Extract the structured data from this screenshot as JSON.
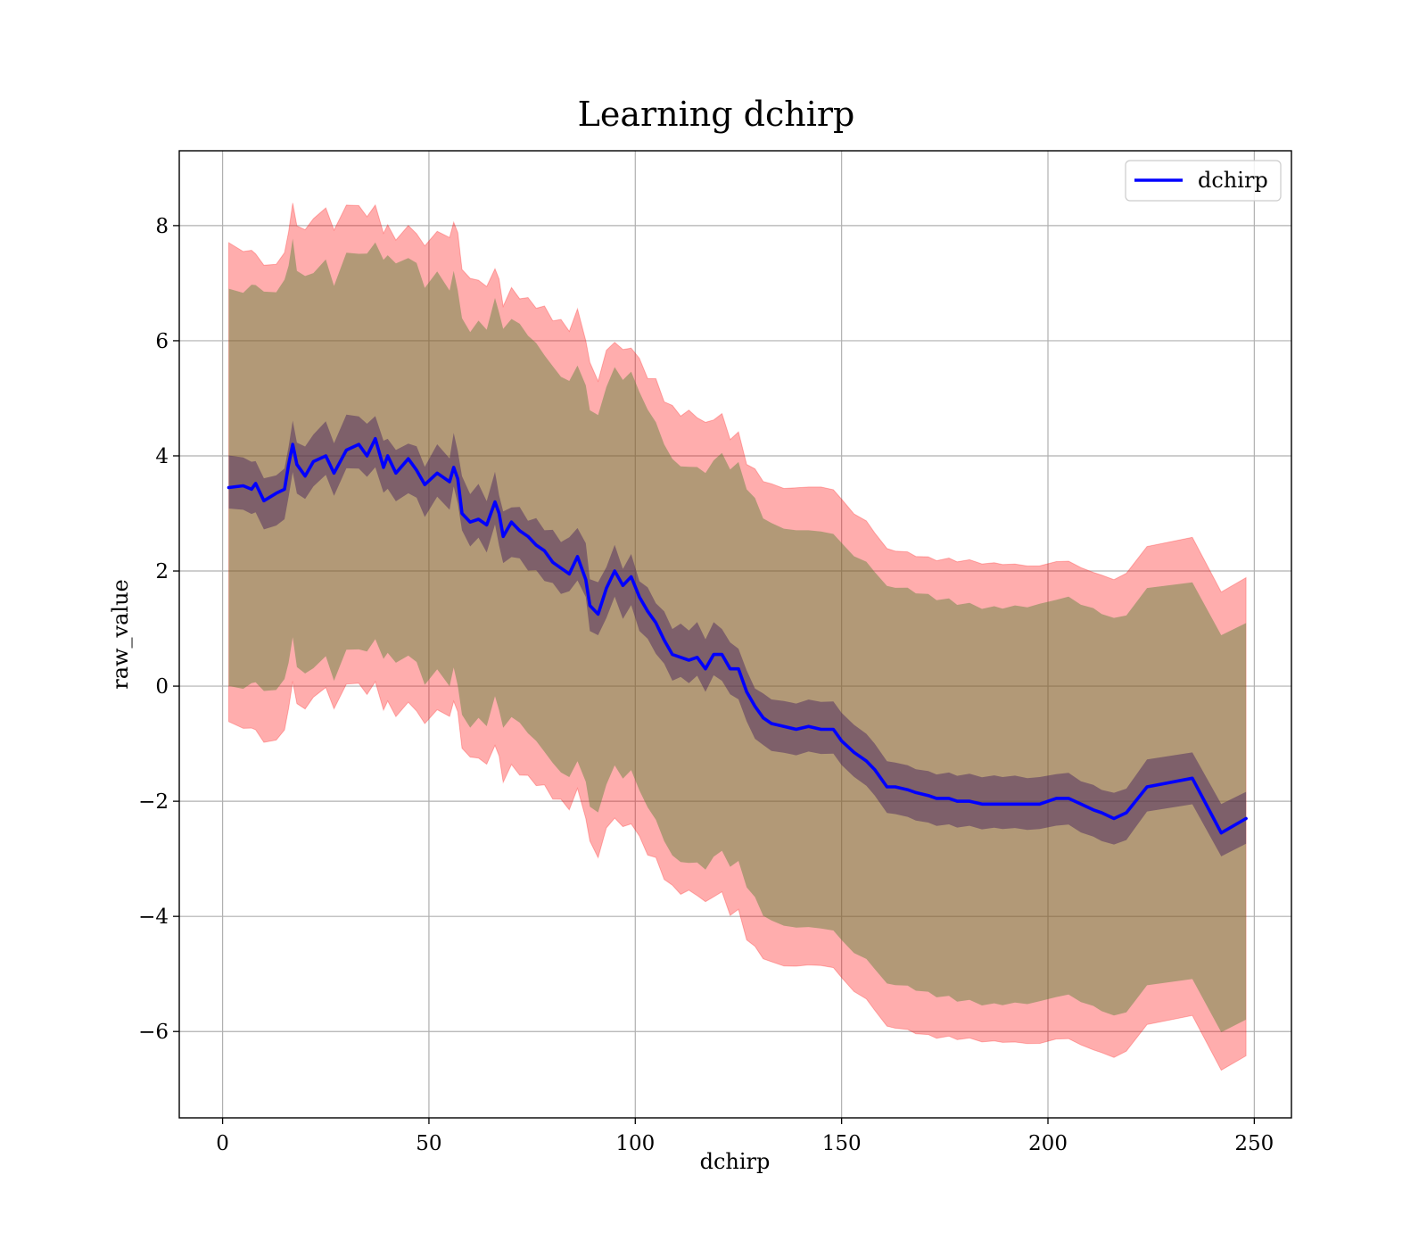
{
  "chart_data": {
    "type": "line",
    "title": "Learning dchirp",
    "xlabel": "dchirp",
    "ylabel": "raw_value",
    "xlim": [
      -10.5,
      259
    ],
    "ylim": [
      -7.5,
      9.3
    ],
    "xticks": [
      0,
      50,
      100,
      150,
      200,
      250
    ],
    "yticks": [
      -6,
      -4,
      -2,
      0,
      2,
      4,
      6,
      8
    ],
    "xtick_labels": [
      "0",
      "50",
      "100",
      "150",
      "200",
      "250"
    ],
    "ytick_labels": [
      "−6",
      "−4",
      "−2",
      "0",
      "2",
      "4",
      "6",
      "8"
    ],
    "grid": true,
    "legend_position": "top-right",
    "colors": {
      "line": "#0000ff",
      "outer_band": "#ff0000",
      "outer_band_opacity": 0.32,
      "middle_band": "#548135",
      "middle_band_opacity": 0.45,
      "inner_band": "#3d1a5c",
      "inner_band_opacity": 0.45
    },
    "series": [
      {
        "name": "dchirp",
        "x": [
          1.5,
          5,
          7,
          8,
          10,
          13,
          15,
          16,
          17,
          18,
          20,
          22,
          25,
          27,
          30,
          33,
          35,
          37,
          39,
          40,
          42,
          45,
          47,
          49,
          52,
          55,
          56,
          57,
          58,
          60,
          62,
          64,
          66,
          67,
          68,
          70,
          72,
          74,
          76,
          78,
          80,
          82,
          84,
          86,
          88,
          89,
          91,
          93,
          95,
          97,
          99,
          101,
          103,
          105,
          107,
          109,
          111,
          113,
          115,
          117,
          119,
          121,
          123,
          125,
          127,
          129,
          131,
          133,
          136,
          139,
          142,
          145,
          148,
          150,
          153,
          156,
          158,
          161,
          163,
          166,
          168,
          171,
          173,
          176,
          178,
          181,
          184,
          187,
          189,
          192,
          195,
          198,
          202,
          205,
          208,
          211,
          213,
          216,
          219,
          224,
          235,
          242,
          248
        ],
        "y": [
          3.45,
          3.48,
          3.42,
          3.52,
          3.22,
          3.35,
          3.42,
          3.85,
          4.2,
          3.85,
          3.65,
          3.9,
          4.0,
          3.7,
          4.1,
          4.2,
          4.0,
          4.3,
          3.8,
          4.0,
          3.7,
          3.95,
          3.75,
          3.5,
          3.7,
          3.55,
          3.8,
          3.6,
          3.0,
          2.85,
          2.9,
          2.8,
          3.2,
          3.0,
          2.6,
          2.85,
          2.7,
          2.6,
          2.45,
          2.35,
          2.15,
          2.05,
          1.95,
          2.25,
          1.85,
          1.4,
          1.25,
          1.7,
          2.0,
          1.75,
          1.9,
          1.55,
          1.3,
          1.1,
          0.8,
          0.55,
          0.5,
          0.45,
          0.5,
          0.3,
          0.55,
          0.55,
          0.3,
          0.3,
          -0.1,
          -0.35,
          -0.55,
          -0.65,
          -0.7,
          -0.75,
          -0.7,
          -0.75,
          -0.75,
          -0.95,
          -1.15,
          -1.3,
          -1.45,
          -1.75,
          -1.75,
          -1.8,
          -1.85,
          -1.9,
          -1.95,
          -1.95,
          -2.0,
          -2.0,
          -2.05,
          -2.05,
          -2.05,
          -2.05,
          -2.05,
          -2.05,
          -1.95,
          -1.95,
          -2.05,
          -2.15,
          -2.2,
          -2.3,
          -2.2,
          -1.75,
          -1.6,
          -2.55,
          -2.3
        ],
        "inner_band_halfwidth": 0.45,
        "middle_band_halfwidth": 3.45,
        "outer_band_halfwidth": 4.15
      }
    ]
  }
}
